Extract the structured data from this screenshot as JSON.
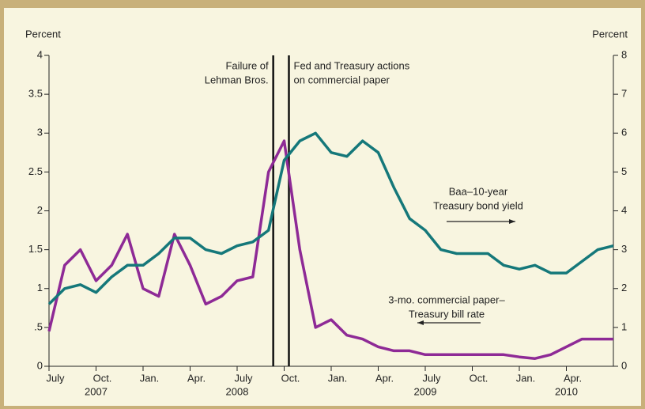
{
  "chart_data": {
    "type": "line",
    "ylabel": "Percent",
    "y2label": "Percent",
    "x": [
      "2007-07",
      "2007-08",
      "2007-09",
      "2007-10",
      "2007-11",
      "2007-12",
      "2008-01",
      "2008-02",
      "2008-03",
      "2008-04",
      "2008-05",
      "2008-06",
      "2008-07",
      "2008-08",
      "2008-09",
      "2008-10",
      "2008-11",
      "2008-12",
      "2009-01",
      "2009-02",
      "2009-03",
      "2009-04",
      "2009-05",
      "2009-06",
      "2009-07",
      "2009-08",
      "2009-09",
      "2009-10",
      "2009-11",
      "2009-12",
      "2010-01",
      "2010-02",
      "2010-03",
      "2010-04",
      "2010-05",
      "2010-06",
      "2010-07"
    ],
    "xlim": [
      "2007-07",
      "2010-07"
    ],
    "xticks": [
      {
        "value": "2007-07",
        "label": "July"
      },
      {
        "value": "2007-10",
        "label": "Oct."
      },
      {
        "value": "2008-01",
        "label": "Jan."
      },
      {
        "value": "2008-04",
        "label": "Apr."
      },
      {
        "value": "2008-07",
        "label": "July"
      },
      {
        "value": "2008-10",
        "label": "Oct."
      },
      {
        "value": "2009-01",
        "label": "Jan."
      },
      {
        "value": "2009-04",
        "label": "Apr."
      },
      {
        "value": "2009-07",
        "label": "July"
      },
      {
        "value": "2009-10",
        "label": "Oct."
      },
      {
        "value": "2010-01",
        "label": "Jan."
      },
      {
        "value": "2010-04",
        "label": "Apr."
      }
    ],
    "year_labels": [
      "2007",
      "2008",
      "2009",
      "2010"
    ],
    "ylim": [
      0,
      4
    ],
    "yticks": [
      0,
      {
        "value": 0.5,
        "label": ".5"
      },
      1,
      1.5,
      2,
      2.5,
      3,
      3.5,
      4
    ],
    "y2lim": [
      0,
      8
    ],
    "y2ticks": [
      0,
      1,
      2,
      3,
      4,
      5,
      6,
      7,
      8
    ],
    "series": [
      {
        "label": [
          "3-mo. commercial paper–",
          "Treasury bill rate"
        ],
        "color": "#8e2a96",
        "values": [
          0.45,
          1.3,
          1.5,
          1.1,
          1.3,
          1.7,
          1.0,
          0.9,
          1.7,
          1.3,
          0.8,
          0.9,
          1.1,
          1.15,
          2.5,
          2.9,
          1.5,
          0.5,
          0.6,
          0.4,
          0.35,
          0.25,
          0.2,
          0.2,
          0.15,
          0.15,
          0.15,
          0.15,
          0.15,
          0.15,
          0.12,
          0.1,
          0.15,
          0.25,
          0.35,
          0.35,
          0.35
        ]
      },
      {
        "label": [
          "Baa–10-year",
          "Treasury bond yield"
        ],
        "color": "#15787a",
        "axis": "y2",
        "values": [
          1.6,
          2.0,
          2.1,
          1.9,
          2.3,
          2.6,
          2.6,
          2.9,
          3.3,
          3.3,
          3.0,
          2.9,
          3.1,
          3.2,
          3.5,
          5.3,
          5.8,
          6.0,
          5.5,
          5.4,
          5.8,
          5.5,
          4.6,
          3.8,
          3.5,
          3.0,
          2.9,
          2.9,
          2.9,
          2.6,
          2.5,
          2.6,
          2.4,
          2.4,
          2.7,
          3.0,
          3.1
        ]
      }
    ],
    "annotations": [
      {
        "x": "2008-09",
        "text": [
          "Failure of",
          "Lehman Bros."
        ]
      },
      {
        "x": "2008-10",
        "text": [
          "Fed and Treasury actions",
          "on commercial paper"
        ]
      }
    ]
  }
}
